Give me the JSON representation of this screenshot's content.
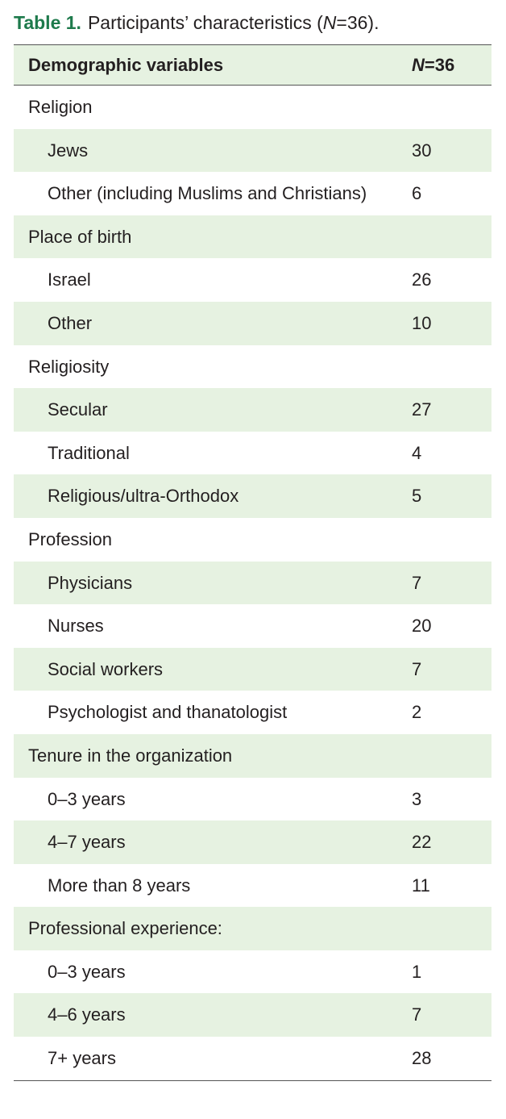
{
  "caption": {
    "label": "Table 1.",
    "text": [
      "Participants’ characteristics (",
      "N",
      "=36)."
    ]
  },
  "table": {
    "header": [
      {
        "text": "Demographic variables"
      },
      {
        "parts": [
          "N",
          "=36"
        ]
      }
    ],
    "groups": [
      {
        "label": "Religion",
        "items": [
          {
            "label": "Jews",
            "value": 30
          },
          {
            "label": "Other (including Muslims and Christians)",
            "value": 6
          }
        ]
      },
      {
        "label": "Place of birth",
        "items": [
          {
            "label": "Israel",
            "value": 26
          },
          {
            "label": "Other",
            "value": 10
          }
        ]
      },
      {
        "label": "Religiosity",
        "items": [
          {
            "label": "Secular",
            "value": 27
          },
          {
            "label": "Traditional",
            "value": 4
          },
          {
            "label": "Religious/ultra-Orthodox",
            "value": 5
          }
        ]
      },
      {
        "label": "Profession",
        "items": [
          {
            "label": "Physicians",
            "value": 7
          },
          {
            "label": "Nurses",
            "value": 20
          },
          {
            "label": "Social workers",
            "value": 7
          },
          {
            "label": "Psychologist and thanatologist",
            "value": 2
          }
        ]
      },
      {
        "label": "Tenure in the organization",
        "items": [
          {
            "label": "0–3 years",
            "value": 3
          },
          {
            "label": "4–7 years",
            "value": 22
          },
          {
            "label": "More than 8 years",
            "value": 11
          }
        ]
      },
      {
        "label": "Professional experience:",
        "items": [
          {
            "label": "0–3 years",
            "value": 1
          },
          {
            "label": "4–6 years",
            "value": 7
          },
          {
            "label": "7+ years",
            "value": 28
          }
        ]
      }
    ]
  }
}
